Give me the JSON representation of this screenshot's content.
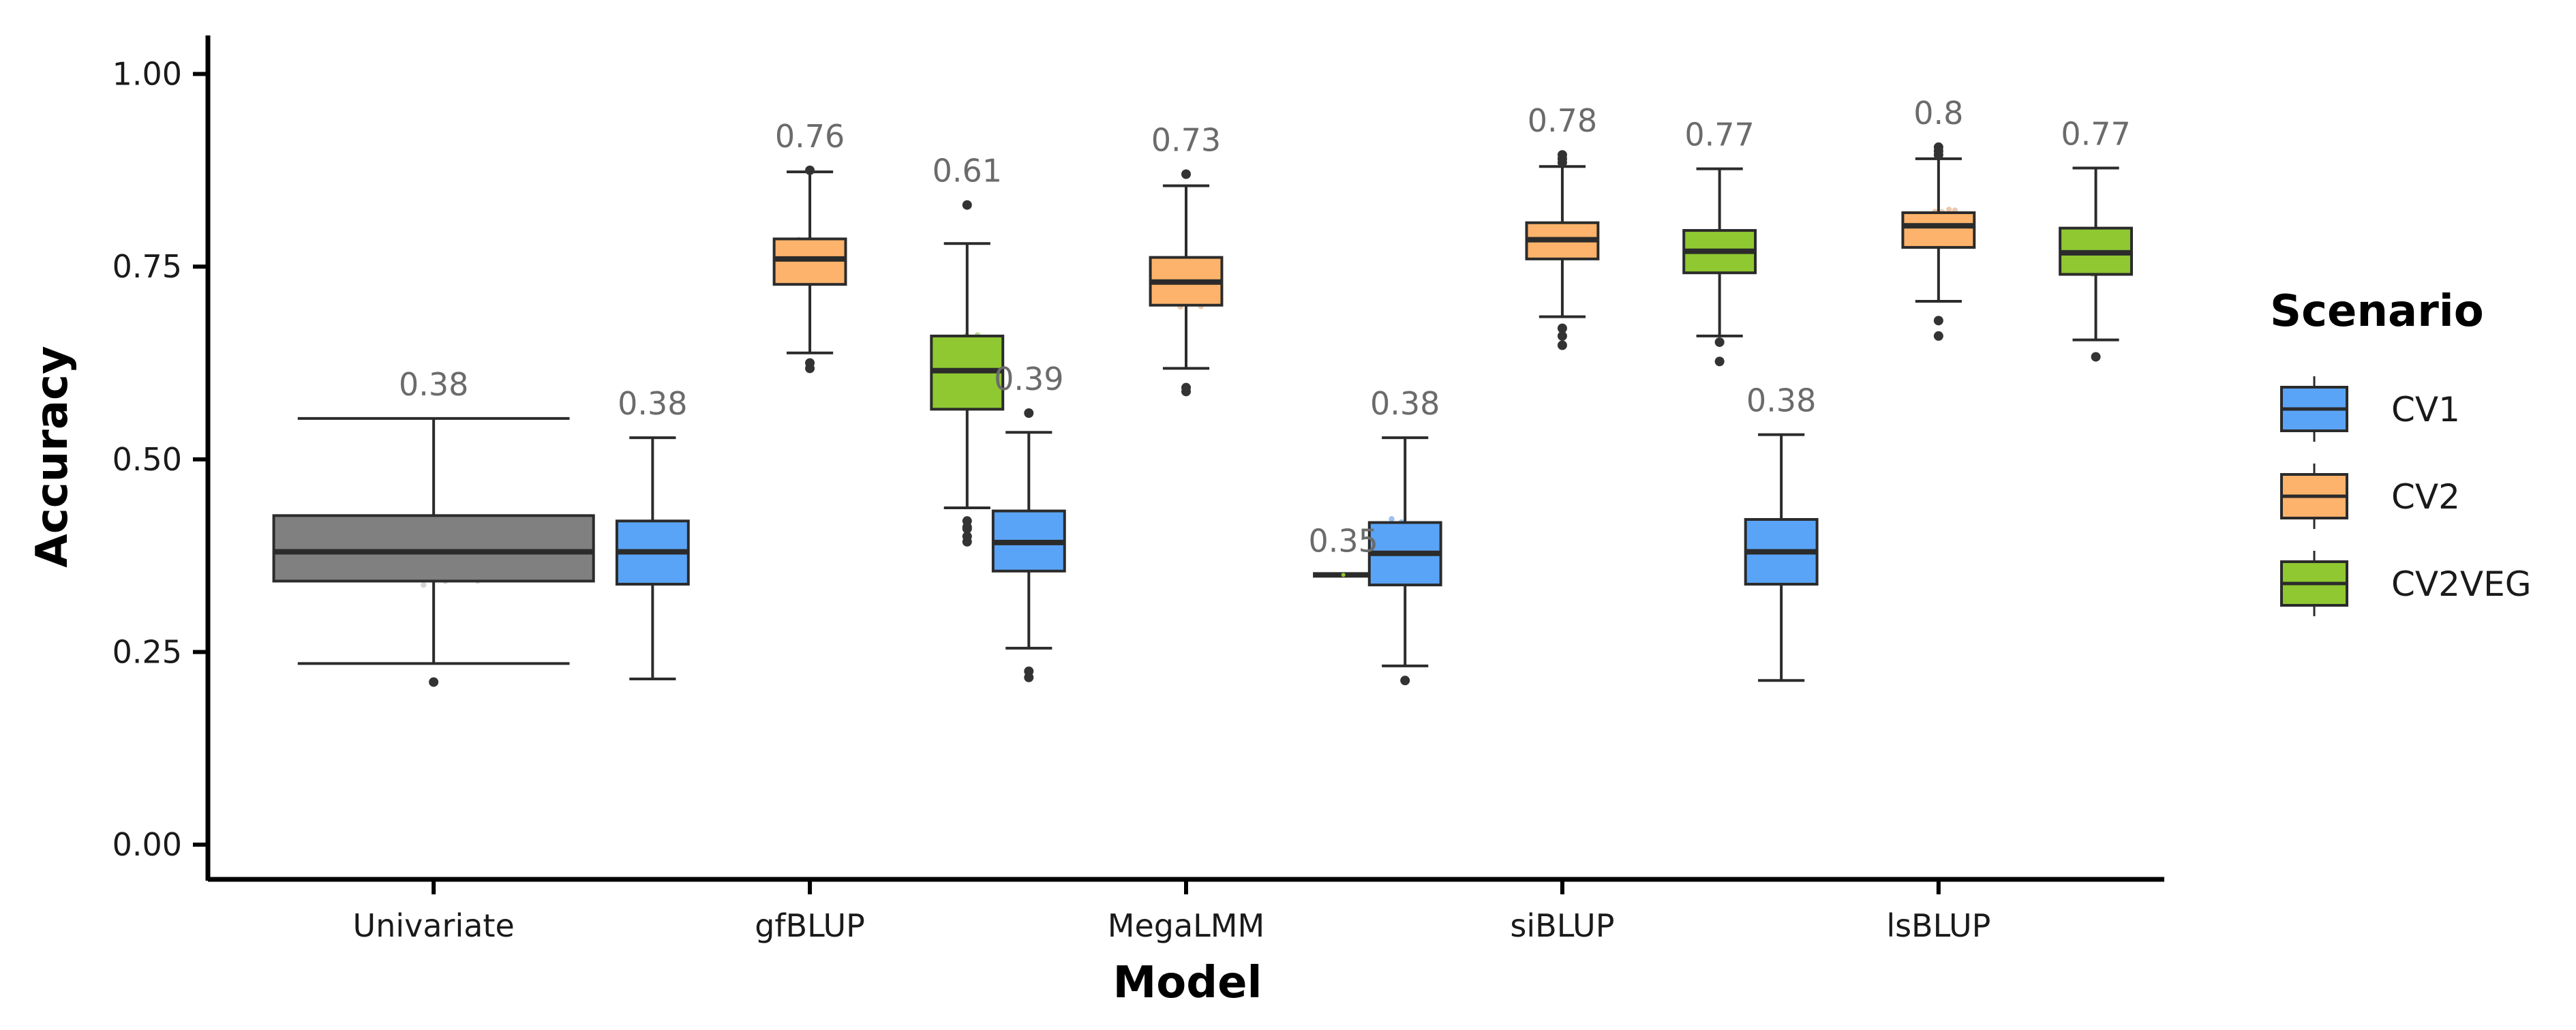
{
  "chart_data": {
    "type": "boxplot",
    "xlabel": "Model",
    "ylabel": "Accuracy",
    "ylim": [
      -0.045,
      1.05
    ],
    "yticks": [
      0.0,
      0.25,
      0.5,
      0.75,
      1.0
    ],
    "ytick_labels": [
      "0.00",
      "0.25",
      "0.50",
      "0.75",
      "1.00"
    ],
    "categories": [
      "Univariate",
      "gfBLUP",
      "MegaLMM",
      "siBLUP",
      "lsBLUP"
    ],
    "legend": {
      "title": "Scenario",
      "position": "right",
      "entries": [
        {
          "key": "CV1",
          "label": "CV1"
        },
        {
          "key": "CV2",
          "label": "CV2"
        },
        {
          "key": "CV2VEG",
          "label": "CV2VEG"
        }
      ]
    },
    "colors": {
      "Univariate": "#808080",
      "CV1": "#5aa4f7",
      "CV2": "#fdb36b",
      "CV2VEG": "#8fc831",
      "outline": "#2b2b2b",
      "point_Univariate": "#b0b0b0",
      "point_CV1": "#4a8ee0",
      "point_CV2": "#d99a6a",
      "point_CV2VEG": "#7fb33e"
    },
    "boxes": [
      {
        "category": "Univariate",
        "group": "Univariate",
        "lower_whisker": 0.235,
        "q1": 0.342,
        "median": 0.38,
        "q3": 0.427,
        "upper_whisker": 0.553,
        "outliers": [
          0.211
        ],
        "label": "0.38"
      },
      {
        "category": "gfBLUP",
        "group": "CV1",
        "lower_whisker": 0.215,
        "q1": 0.338,
        "median": 0.38,
        "q3": 0.42,
        "upper_whisker": 0.528,
        "outliers": [],
        "label": "0.38"
      },
      {
        "category": "gfBLUP",
        "group": "CV2",
        "lower_whisker": 0.638,
        "q1": 0.727,
        "median": 0.76,
        "q3": 0.786,
        "upper_whisker": 0.873,
        "outliers": [
          0.875,
          0.618,
          0.625
        ],
        "label": "0.76"
      },
      {
        "category": "gfBLUP",
        "group": "CV2VEG",
        "lower_whisker": 0.437,
        "q1": 0.565,
        "median": 0.615,
        "q3": 0.66,
        "upper_whisker": 0.78,
        "outliers": [
          0.83,
          0.42,
          0.41,
          0.4,
          0.393,
          0.412
        ],
        "label": "0.61"
      },
      {
        "category": "MegaLMM",
        "group": "CV1",
        "lower_whisker": 0.255,
        "q1": 0.355,
        "median": 0.392,
        "q3": 0.433,
        "upper_whisker": 0.535,
        "outliers": [
          0.56,
          0.225,
          0.217
        ],
        "label": "0.39"
      },
      {
        "category": "MegaLMM",
        "group": "CV2",
        "lower_whisker": 0.618,
        "q1": 0.7,
        "median": 0.73,
        "q3": 0.762,
        "upper_whisker": 0.855,
        "outliers": [
          0.87,
          0.593,
          0.588
        ],
        "label": "0.73"
      },
      {
        "category": "MegaLMM",
        "group": "CV2VEG",
        "lower_whisker": 0.35,
        "q1": 0.35,
        "median": 0.35,
        "q3": 0.35,
        "upper_whisker": 0.35,
        "outliers": [],
        "label": "0.35"
      },
      {
        "category": "siBLUP",
        "group": "CV1",
        "lower_whisker": 0.232,
        "q1": 0.337,
        "median": 0.378,
        "q3": 0.418,
        "upper_whisker": 0.528,
        "outliers": [
          0.213
        ],
        "label": "0.38"
      },
      {
        "category": "siBLUP",
        "group": "CV2",
        "lower_whisker": 0.685,
        "q1": 0.76,
        "median": 0.785,
        "q3": 0.807,
        "upper_whisker": 0.88,
        "outliers": [
          0.895,
          0.89,
          0.885,
          0.67,
          0.66,
          0.648
        ],
        "label": "0.78"
      },
      {
        "category": "siBLUP",
        "group": "CV2VEG",
        "lower_whisker": 0.66,
        "q1": 0.742,
        "median": 0.77,
        "q3": 0.797,
        "upper_whisker": 0.877,
        "outliers": [
          0.652,
          0.627
        ],
        "label": "0.77"
      },
      {
        "category": "lsBLUP",
        "group": "CV1",
        "lower_whisker": 0.213,
        "q1": 0.338,
        "median": 0.38,
        "q3": 0.422,
        "upper_whisker": 0.532,
        "outliers": [],
        "label": "0.38"
      },
      {
        "category": "lsBLUP",
        "group": "CV2",
        "lower_whisker": 0.705,
        "q1": 0.775,
        "median": 0.803,
        "q3": 0.82,
        "upper_whisker": 0.89,
        "outliers": [
          0.905,
          0.9,
          0.895,
          0.68,
          0.66
        ],
        "label": "0.8"
      },
      {
        "category": "lsBLUP",
        "group": "CV2VEG",
        "lower_whisker": 0.655,
        "q1": 0.74,
        "median": 0.768,
        "q3": 0.8,
        "upper_whisker": 0.878,
        "outliers": [
          0.633
        ],
        "label": "0.77"
      }
    ]
  }
}
